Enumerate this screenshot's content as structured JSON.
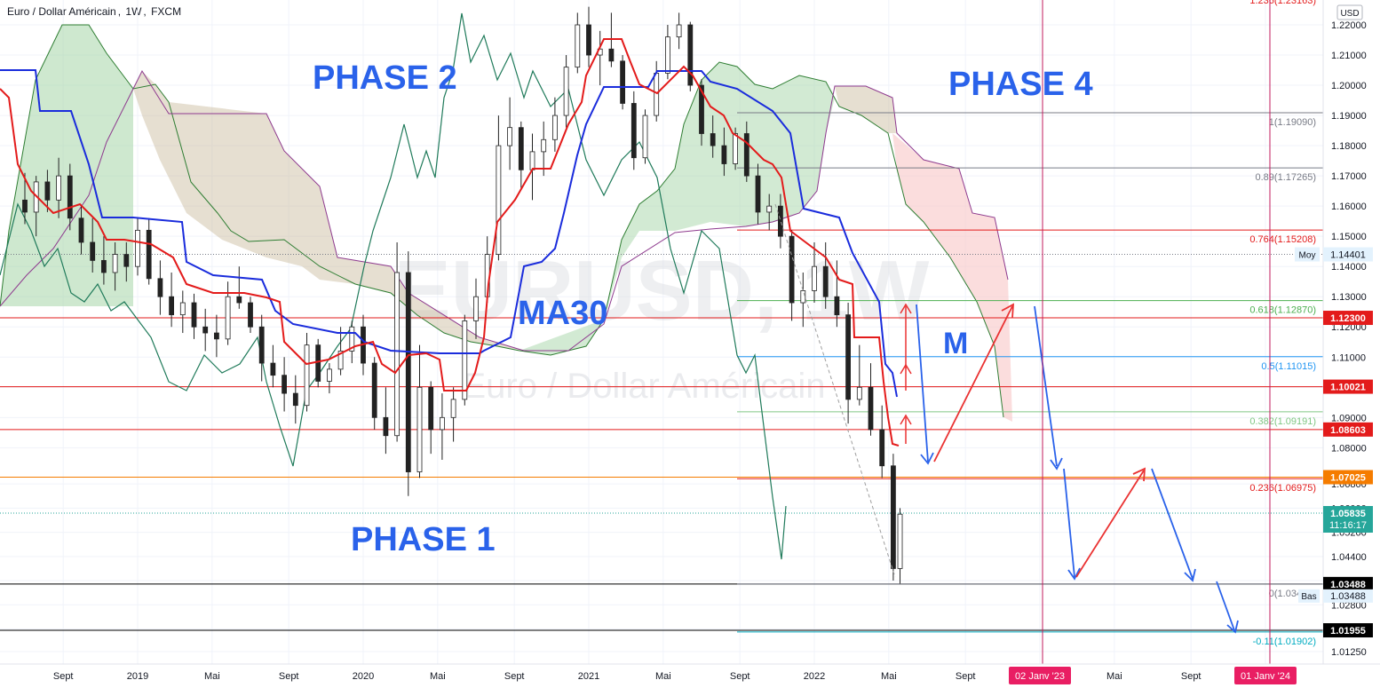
{
  "header": {
    "symbol_name": "Euro / Dollar Américain",
    "interval": "1W",
    "exchange": "FXCM"
  },
  "watermark": {
    "symbol": "EURUSD, 1W",
    "name": "Euro / Dollar Américain"
  },
  "currency_badge": "USD",
  "colors": {
    "ma_blue": "#1a2cdc",
    "ma_red": "#e31b1b",
    "lagging_green": "#1f7a5a",
    "cloud_green": "#a5d6a7",
    "cloud_tan": "#c8b89a",
    "cloud_pink": "#f8c7c7",
    "arrow_blue": "#2a62ea",
    "arrow_red": "#ea3232",
    "phase_blue": "#2a62ea"
  },
  "annotations": [
    {
      "id": "phase1",
      "text": "PHASE 1"
    },
    {
      "id": "phase2",
      "text": "PHASE 2"
    },
    {
      "id": "phase4",
      "text": "PHASE 4"
    },
    {
      "id": "ma30",
      "text": "MA30"
    },
    {
      "id": "m",
      "text": "M"
    }
  ],
  "chart_data": {
    "type": "candlestick",
    "symbol": "EURUSD",
    "interval": "1W",
    "ylim": [
      1.0125,
      1.2275
    ],
    "y_ticks": [
      1.0125,
      1.02,
      1.028,
      1.036,
      1.044,
      1.052,
      1.06,
      1.068,
      1.08,
      1.09,
      1.1,
      1.11,
      1.12,
      1.13,
      1.14,
      1.15,
      1.16,
      1.17,
      1.18,
      1.19,
      1.2,
      1.21,
      1.22
    ],
    "y_tick_labels": [
      "1.01250",
      "1.02000",
      "1.02800",
      "1.03600",
      "1.04400",
      "1.05200",
      "1.06000",
      "1.06800",
      "1.08000",
      "1.09000",
      "1.10000",
      "1.11000",
      "1.12000",
      "1.13000",
      "1.14000",
      "1.15000",
      "1.16000",
      "1.17000",
      "1.18000",
      "1.19000",
      "1.20000",
      "1.21000",
      "1.22000"
    ],
    "x_labels": [
      {
        "label": "Sept",
        "t": 2018.67
      },
      {
        "label": "2019",
        "t": 2019.0
      },
      {
        "label": "Mai",
        "t": 2019.33
      },
      {
        "label": "Sept",
        "t": 2019.67
      },
      {
        "label": "2020",
        "t": 2020.0
      },
      {
        "label": "Mai",
        "t": 2020.33
      },
      {
        "label": "Sept",
        "t": 2020.67
      },
      {
        "label": "2021",
        "t": 2021.0
      },
      {
        "label": "Mai",
        "t": 2021.33
      },
      {
        "label": "Sept",
        "t": 2021.67
      },
      {
        "label": "2022",
        "t": 2022.0
      },
      {
        "label": "Mai",
        "t": 2022.33
      },
      {
        "label": "Sept",
        "t": 2022.67
      },
      {
        "label": "02 Janv '23",
        "t": 2023.0,
        "highlight": true
      },
      {
        "label": "Mai",
        "t": 2023.33
      },
      {
        "label": "Sept",
        "t": 2023.67
      },
      {
        "label": "01 Janv '24",
        "t": 2024.0,
        "highlight": true
      }
    ],
    "price_levels": [
      {
        "label": "1.12300",
        "value": 1.123,
        "color": "#e31b1b"
      },
      {
        "label": "1.10021",
        "value": 1.10021,
        "color": "#e31b1b"
      },
      {
        "label": "1.08603",
        "value": 1.08603,
        "color": "#e31b1b"
      },
      {
        "label": "1.07025",
        "value": 1.07025,
        "color": "#f57c00"
      },
      {
        "label": "1.03488",
        "value": 1.03488,
        "color": "#000000"
      },
      {
        "label": "1.01955",
        "value": 1.01955,
        "color": "#000000"
      }
    ],
    "moy": {
      "label": "Moy",
      "value": 1.14401
    },
    "bas": {
      "label": "Bas",
      "value": 1.03488
    },
    "last_price": {
      "value": "1.05835",
      "countdown": "11:16:17"
    },
    "fibonacci": [
      {
        "ratio": "1",
        "value": 1.1909,
        "label": "1(1.19090)",
        "color": "#787b86"
      },
      {
        "ratio": "0.89",
        "value": 1.17265,
        "label": "0.89(1.17265)",
        "color": "#787b86"
      },
      {
        "ratio": "0.764",
        "value": 1.15208,
        "label": "0.764(1.15208)",
        "color": "#e31b1b"
      },
      {
        "ratio": "0.618",
        "value": 1.1287,
        "label": "0.618(1.12870)",
        "color": "#4caf50"
      },
      {
        "ratio": "0.5",
        "value": 1.11015,
        "label": "0.5(1.11015)",
        "color": "#2196f3"
      },
      {
        "ratio": "0.382",
        "value": 1.09191,
        "label": "0.382(1.09191)",
        "color": "#81c784"
      },
      {
        "ratio": "0.236",
        "value": 1.06975,
        "label": "0.236(1.06975)",
        "color": "#e31b1b"
      },
      {
        "ratio": "0",
        "value": 1.03488,
        "label": "0(1.03488)",
        "color": "#787b86"
      },
      {
        "ratio": "-0.11",
        "value": 1.01902,
        "label": "-0.11(1.01902)",
        "color": "#00acc1"
      },
      {
        "ratio": "1.236",
        "value": 1.23163,
        "label": "1.236(1.23163)",
        "color": "#e31b1b"
      }
    ],
    "candles_ohlc": [
      [
        2018.5,
        1.162,
        1.171,
        1.154,
        1.158
      ],
      [
        2018.55,
        1.158,
        1.17,
        1.15,
        1.168
      ],
      [
        2018.6,
        1.168,
        1.172,
        1.158,
        1.162
      ],
      [
        2018.65,
        1.162,
        1.176,
        1.156,
        1.17
      ],
      [
        2018.7,
        1.17,
        1.174,
        1.152,
        1.156
      ],
      [
        2018.75,
        1.156,
        1.16,
        1.144,
        1.148
      ],
      [
        2018.8,
        1.148,
        1.156,
        1.138,
        1.142
      ],
      [
        2018.85,
        1.142,
        1.15,
        1.134,
        1.138
      ],
      [
        2018.9,
        1.138,
        1.148,
        1.132,
        1.144
      ],
      [
        2018.95,
        1.144,
        1.148,
        1.135,
        1.14
      ],
      [
        2019.0,
        1.14,
        1.156,
        1.137,
        1.152
      ],
      [
        2019.05,
        1.152,
        1.156,
        1.134,
        1.136
      ],
      [
        2019.1,
        1.136,
        1.142,
        1.124,
        1.13
      ],
      [
        2019.15,
        1.13,
        1.138,
        1.12,
        1.124
      ],
      [
        2019.2,
        1.124,
        1.132,
        1.118,
        1.128
      ],
      [
        2019.25,
        1.128,
        1.131,
        1.116,
        1.12
      ],
      [
        2019.3,
        1.12,
        1.126,
        1.112,
        1.118
      ],
      [
        2019.35,
        1.118,
        1.124,
        1.11,
        1.116
      ],
      [
        2019.4,
        1.116,
        1.135,
        1.114,
        1.13
      ],
      [
        2019.45,
        1.13,
        1.14,
        1.126,
        1.128
      ],
      [
        2019.5,
        1.128,
        1.13,
        1.118,
        1.12
      ],
      [
        2019.55,
        1.12,
        1.124,
        1.102,
        1.108
      ],
      [
        2019.6,
        1.108,
        1.114,
        1.1,
        1.104
      ],
      [
        2019.65,
        1.104,
        1.11,
        1.092,
        1.098
      ],
      [
        2019.7,
        1.098,
        1.104,
        1.088,
        1.094
      ],
      [
        2019.75,
        1.094,
        1.118,
        1.092,
        1.114
      ],
      [
        2019.8,
        1.114,
        1.116,
        1.1,
        1.102
      ],
      [
        2019.85,
        1.102,
        1.108,
        1.098,
        1.106
      ],
      [
        2019.9,
        1.106,
        1.12,
        1.104,
        1.112
      ],
      [
        2019.95,
        1.112,
        1.122,
        1.108,
        1.12
      ],
      [
        2020.0,
        1.12,
        1.124,
        1.104,
        1.108
      ],
      [
        2020.05,
        1.108,
        1.11,
        1.086,
        1.09
      ],
      [
        2020.1,
        1.09,
        1.1,
        1.078,
        1.084
      ],
      [
        2020.15,
        1.084,
        1.148,
        1.082,
        1.138
      ],
      [
        2020.2,
        1.138,
        1.145,
        1.064,
        1.072
      ],
      [
        2020.25,
        1.072,
        1.114,
        1.07,
        1.1
      ],
      [
        2020.3,
        1.1,
        1.102,
        1.078,
        1.086
      ],
      [
        2020.35,
        1.086,
        1.098,
        1.076,
        1.09
      ],
      [
        2020.4,
        1.09,
        1.1,
        1.082,
        1.096
      ],
      [
        2020.45,
        1.096,
        1.124,
        1.094,
        1.122
      ],
      [
        2020.5,
        1.122,
        1.136,
        1.116,
        1.13
      ],
      [
        2020.55,
        1.13,
        1.15,
        1.128,
        1.144
      ],
      [
        2020.6,
        1.144,
        1.19,
        1.142,
        1.18
      ],
      [
        2020.65,
        1.18,
        1.196,
        1.172,
        1.186
      ],
      [
        2020.7,
        1.186,
        1.188,
        1.166,
        1.172
      ],
      [
        2020.75,
        1.172,
        1.184,
        1.162,
        1.178
      ],
      [
        2020.8,
        1.178,
        1.188,
        1.17,
        1.182
      ],
      [
        2020.85,
        1.182,
        1.196,
        1.178,
        1.19
      ],
      [
        2020.9,
        1.19,
        1.21,
        1.186,
        1.206
      ],
      [
        2020.95,
        1.206,
        1.224,
        1.204,
        1.22
      ],
      [
        2021.0,
        1.22,
        1.226,
        1.206,
        1.21
      ],
      [
        2021.05,
        1.21,
        1.218,
        1.2,
        1.212
      ],
      [
        2021.1,
        1.212,
        1.224,
        1.206,
        1.208
      ],
      [
        2021.15,
        1.208,
        1.21,
        1.192,
        1.194
      ],
      [
        2021.2,
        1.194,
        1.198,
        1.172,
        1.176
      ],
      [
        2021.25,
        1.176,
        1.192,
        1.174,
        1.19
      ],
      [
        2021.3,
        1.19,
        1.208,
        1.188,
        1.204
      ],
      [
        2021.35,
        1.204,
        1.22,
        1.202,
        1.216
      ],
      [
        2021.4,
        1.216,
        1.224,
        1.212,
        1.22
      ],
      [
        2021.45,
        1.22,
        1.221,
        1.198,
        1.2
      ],
      [
        2021.5,
        1.2,
        1.202,
        1.18,
        1.184
      ],
      [
        2021.55,
        1.184,
        1.19,
        1.176,
        1.18
      ],
      [
        2021.6,
        1.18,
        1.186,
        1.17,
        1.174
      ],
      [
        2021.65,
        1.174,
        1.186,
        1.172,
        1.184
      ],
      [
        2021.7,
        1.184,
        1.188,
        1.168,
        1.17
      ],
      [
        2021.75,
        1.17,
        1.174,
        1.154,
        1.158
      ],
      [
        2021.8,
        1.158,
        1.164,
        1.152,
        1.16
      ],
      [
        2021.85,
        1.16,
        1.164,
        1.146,
        1.15
      ],
      [
        2021.9,
        1.15,
        1.152,
        1.122,
        1.128
      ],
      [
        2021.95,
        1.128,
        1.138,
        1.12,
        1.132
      ],
      [
        2022.0,
        1.132,
        1.148,
        1.128,
        1.14
      ],
      [
        2022.05,
        1.14,
        1.148,
        1.126,
        1.13
      ],
      [
        2022.1,
        1.13,
        1.142,
        1.12,
        1.124
      ],
      [
        2022.15,
        1.124,
        1.128,
        1.088,
        1.096
      ],
      [
        2022.2,
        1.096,
        1.114,
        1.094,
        1.1
      ],
      [
        2022.25,
        1.1,
        1.108,
        1.084,
        1.086
      ],
      [
        2022.3,
        1.086,
        1.094,
        1.07,
        1.074
      ],
      [
        2022.35,
        1.074,
        1.078,
        1.036,
        1.04
      ],
      [
        2022.38,
        1.04,
        1.06,
        1.035,
        1.058
      ]
    ]
  }
}
